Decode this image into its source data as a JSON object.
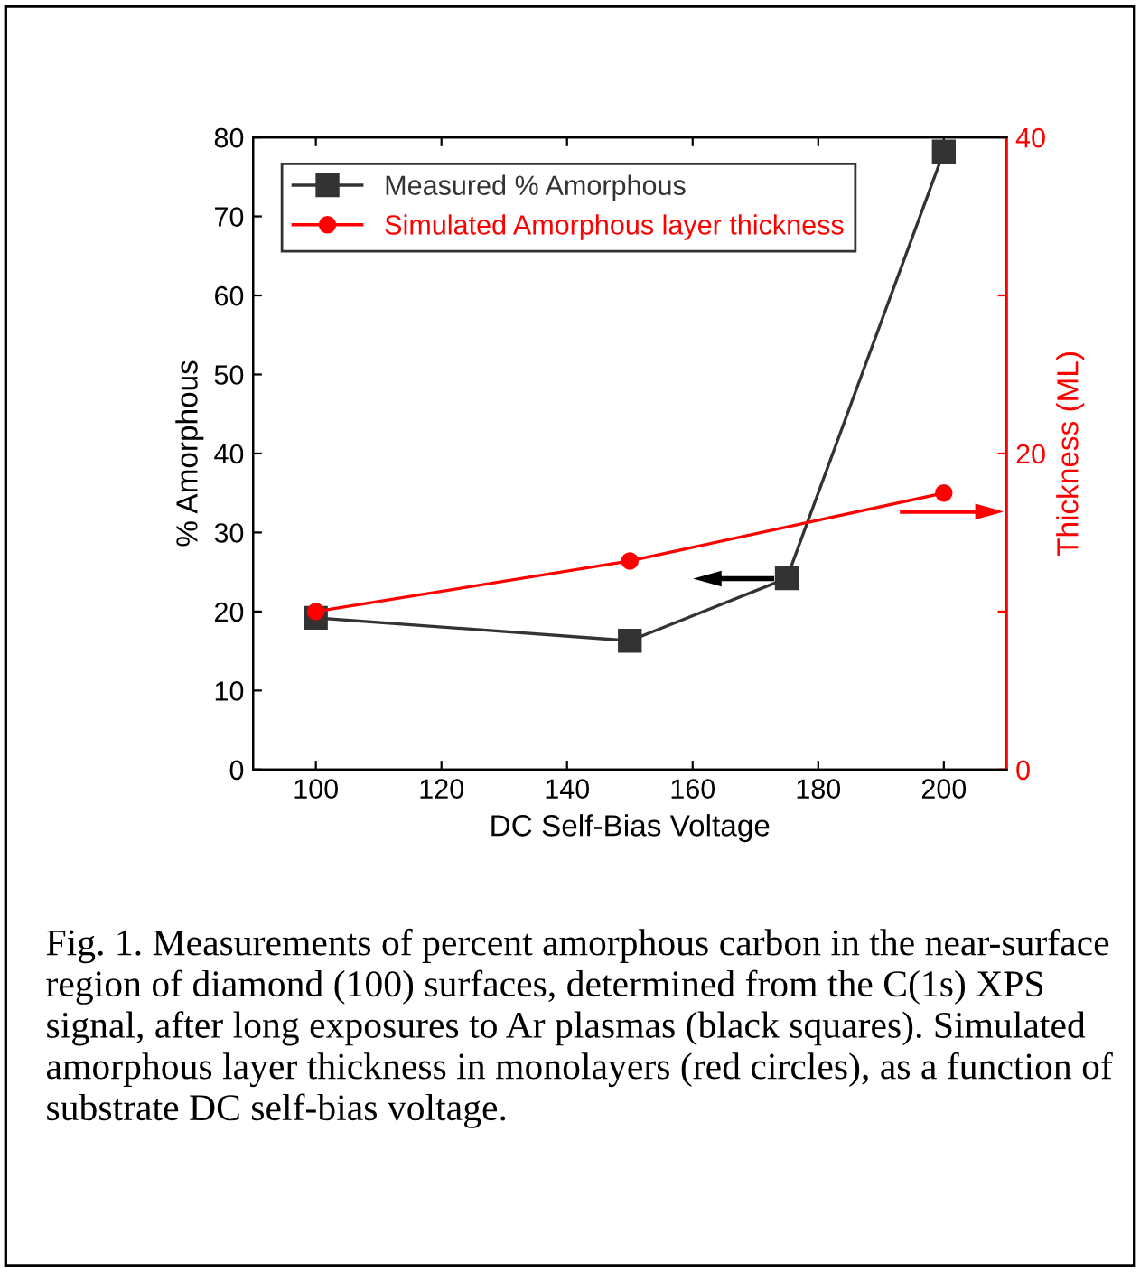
{
  "chart_data": {
    "type": "line",
    "xlabel": "DC Self-Bias Voltage",
    "ylabel": "% Amorphous",
    "y2label": "Thickness (ML)",
    "x": [
      100,
      150,
      175,
      200
    ],
    "series": [
      {
        "name": "Measured % Amorphous",
        "color": "#333333",
        "marker": "square",
        "values": [
          19.2,
          16.3,
          24.2,
          78.2
        ]
      },
      {
        "name": "Simulated Amorphous layer thickness",
        "color": "#ff0000",
        "marker": "circle",
        "axis": "y2",
        "x": [
          100,
          150,
          200
        ],
        "values": [
          10.0,
          13.2,
          17.5
        ]
      }
    ],
    "xlim": [
      90,
      210
    ],
    "xticks": [
      100,
      120,
      140,
      160,
      180,
      200
    ],
    "ylim": [
      0,
      80
    ],
    "yticks": [
      0,
      10,
      20,
      30,
      40,
      50,
      60,
      70,
      80
    ],
    "y2lim": [
      0,
      40
    ],
    "y2ticks": [
      0,
      {
        "value": 10,
        "label": null
      },
      20,
      {
        "value": 30,
        "label": null
      },
      40
    ],
    "legend": "top left",
    "grid": false,
    "line_style": "solid",
    "annotations": [
      "Fig. 1. Measurements of percent amorphous carbon in the near-surface region of diamond (100) surfaces, determined from the C(1s) XPS signal, after long exposures to Ar plasmas (black squares). Simulated amorphous layer thickness in monolayers (red circles), as a function of substrate DC self-bias voltage."
    ]
  }
}
